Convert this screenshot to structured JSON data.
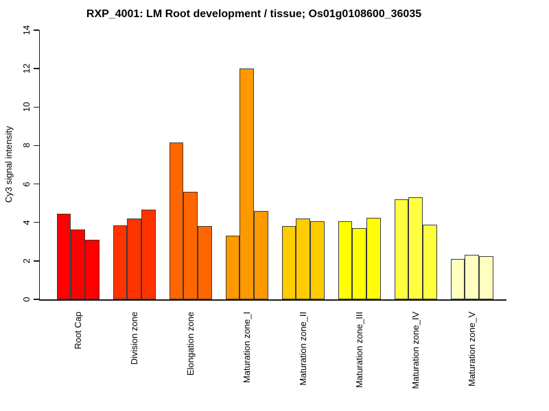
{
  "chart_data": {
    "type": "bar",
    "title": "RXP_4001: LM Root development / tissue; Os01g0108600_36035",
    "xlabel": "",
    "ylabel": "Cy3 signal intensity",
    "ylim": [
      0,
      14
    ],
    "yticks": [
      0,
      2,
      4,
      6,
      8,
      10,
      12,
      14
    ],
    "grid": false,
    "legend": "none",
    "bars_per_group": 3,
    "bar_border_color": "#3c3c3c",
    "palette_name": "heat-colors",
    "categories": [
      "Root Cap",
      "Division zone",
      "Elongation zone",
      "Maturation zone_I",
      "Maturation zone_II",
      "Maturation zone_III",
      "Maturation zone_IV",
      "Maturation zone_V"
    ],
    "groups": [
      {
        "label": "Root Cap",
        "color": "#FF0000",
        "values": [
          4.45,
          3.65,
          3.1
        ]
      },
      {
        "label": "Division zone",
        "color": "#FF3300",
        "values": [
          3.85,
          4.2,
          4.65
        ]
      },
      {
        "label": "Elongation zone",
        "color": "#FF6600",
        "values": [
          8.15,
          5.6,
          3.8
        ]
      },
      {
        "label": "Maturation zone_I",
        "color": "#FF9900",
        "values": [
          3.3,
          12.0,
          4.6
        ]
      },
      {
        "label": "Maturation zone_II",
        "color": "#FFCC00",
        "values": [
          3.8,
          4.2,
          4.05
        ]
      },
      {
        "label": "Maturation zone_III",
        "color": "#FFFF00",
        "values": [
          4.05,
          3.7,
          4.25
        ]
      },
      {
        "label": "Maturation zone_IV",
        "color": "#FFFF40",
        "values": [
          5.2,
          5.3,
          3.9
        ]
      },
      {
        "label": "Maturation zone_V",
        "color": "#FFFFBF",
        "values": [
          2.1,
          2.3,
          2.25
        ]
      }
    ]
  }
}
